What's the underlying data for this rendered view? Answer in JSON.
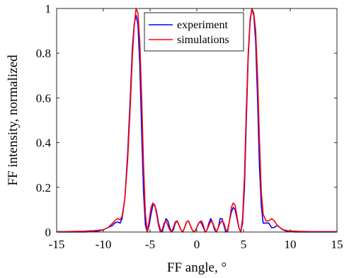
{
  "chart_data": {
    "type": "line",
    "title": "",
    "xlabel": "FF angle, °",
    "ylabel": "FF intensity, normalized",
    "xlim": [
      -15,
      15
    ],
    "ylim": [
      0,
      1
    ],
    "grid": false,
    "legend_position": "top-center",
    "x_ticks": [
      -15,
      -10,
      -5,
      0,
      5,
      10,
      15
    ],
    "y_ticks": [
      0,
      0.2,
      0.4,
      0.6,
      0.8,
      1
    ],
    "x_tick_labels": [
      "-15",
      "-10",
      "-5",
      "0",
      "5",
      "10",
      "15"
    ],
    "y_tick_labels": [
      "0",
      "0.2",
      "0.4",
      "0.6",
      "0.8",
      "1"
    ],
    "series": [
      {
        "name": "experiment",
        "color": "#0000ff",
        "x": [
          -15,
          -14,
          -13,
          -12,
          -11,
          -10.5,
          -10,
          -9.5,
          -9,
          -8.8,
          -8.5,
          -8.2,
          -8,
          -7.7,
          -7.4,
          -7.1,
          -6.9,
          -6.7,
          -6.5,
          -6.3,
          -6.1,
          -5.9,
          -5.7,
          -5.5,
          -5.3,
          -5.1,
          -4.9,
          -4.7,
          -4.5,
          -4.3,
          -4.1,
          -3.9,
          -3.7,
          -3.5,
          -3.3,
          -3.1,
          -2.9,
          -2.7,
          -2.5,
          -2.3,
          -2.1,
          -1.9,
          -1.7,
          -1.5,
          -1.3,
          -1.1,
          -0.9,
          -0.7,
          -0.5,
          -0.3,
          -0.1,
          0.1,
          0.3,
          0.5,
          0.7,
          0.9,
          1.1,
          1.3,
          1.5,
          1.7,
          1.9,
          2.1,
          2.3,
          2.5,
          2.7,
          2.9,
          3.1,
          3.3,
          3.5,
          3.7,
          3.9,
          4.1,
          4.3,
          4.5,
          4.7,
          4.9,
          5.1,
          5.3,
          5.5,
          5.7,
          5.9,
          6.1,
          6.3,
          6.5,
          6.7,
          6.9,
          7.1,
          7.4,
          7.7,
          8.0,
          8.3,
          8.6,
          8.9,
          9.2,
          9.5,
          9.8,
          10.5,
          11,
          12,
          13,
          14,
          15
        ],
        "values": [
          0.0,
          0.0,
          0.0,
          0.0,
          0.002,
          0.005,
          0.01,
          0.02,
          0.03,
          0.04,
          0.045,
          0.04,
          0.06,
          0.15,
          0.35,
          0.62,
          0.82,
          0.93,
          0.97,
          0.93,
          0.75,
          0.45,
          0.18,
          0.03,
          0.0,
          0.03,
          0.08,
          0.12,
          0.12,
          0.09,
          0.04,
          0.01,
          0.0,
          0.03,
          0.06,
          0.05,
          0.02,
          0.0,
          0.01,
          0.04,
          0.05,
          0.03,
          0.01,
          0.0,
          0.02,
          0.045,
          0.05,
          0.03,
          0.01,
          0.0,
          0.01,
          0.03,
          0.045,
          0.04,
          0.02,
          0.0,
          0.01,
          0.04,
          0.06,
          0.04,
          0.01,
          0.0,
          0.02,
          0.06,
          0.06,
          0.03,
          0.0,
          0.01,
          0.05,
          0.09,
          0.11,
          0.1,
          0.06,
          0.02,
          0.0,
          0.04,
          0.2,
          0.5,
          0.78,
          0.94,
          1.0,
          0.97,
          0.85,
          0.6,
          0.3,
          0.12,
          0.04,
          0.04,
          0.04,
          0.02,
          0.02,
          0.03,
          0.02,
          0.01,
          0.005,
          0.002,
          0.0,
          0.0,
          0.0,
          0.0,
          0.0,
          0.0
        ]
      },
      {
        "name": "simulations",
        "color": "#ff0000",
        "x": [
          -15,
          -14,
          -13,
          -12,
          -11,
          -10.5,
          -10,
          -9.5,
          -9,
          -8.8,
          -8.5,
          -8.2,
          -8,
          -7.7,
          -7.4,
          -7.1,
          -6.9,
          -6.7,
          -6.5,
          -6.3,
          -6.1,
          -5.9,
          -5.7,
          -5.5,
          -5.3,
          -5.1,
          -4.9,
          -4.7,
          -4.5,
          -4.3,
          -4.1,
          -3.9,
          -3.7,
          -3.5,
          -3.3,
          -3.1,
          -2.9,
          -2.7,
          -2.5,
          -2.3,
          -2.1,
          -1.9,
          -1.7,
          -1.5,
          -1.3,
          -1.1,
          -0.9,
          -0.7,
          -0.5,
          -0.3,
          -0.1,
          0.1,
          0.3,
          0.5,
          0.7,
          0.9,
          1.1,
          1.3,
          1.5,
          1.7,
          1.9,
          2.1,
          2.3,
          2.5,
          2.7,
          2.9,
          3.1,
          3.3,
          3.5,
          3.7,
          3.9,
          4.1,
          4.3,
          4.5,
          4.7,
          4.9,
          5.1,
          5.3,
          5.5,
          5.7,
          5.9,
          6.1,
          6.3,
          6.5,
          6.7,
          6.9,
          7.1,
          7.4,
          7.7,
          8.0,
          8.3,
          8.6,
          8.9,
          9.2,
          9.5,
          9.8,
          10.5,
          11,
          12,
          13,
          14,
          15
        ],
        "values": [
          0.002,
          0.002,
          0.003,
          0.004,
          0.006,
          0.008,
          0.01,
          0.02,
          0.04,
          0.05,
          0.06,
          0.055,
          0.07,
          0.15,
          0.32,
          0.58,
          0.78,
          0.92,
          1.0,
          0.98,
          0.85,
          0.6,
          0.3,
          0.08,
          0.0,
          0.05,
          0.11,
          0.13,
          0.12,
          0.08,
          0.03,
          0.0,
          0.01,
          0.04,
          0.05,
          0.03,
          0.01,
          0.0,
          0.02,
          0.045,
          0.05,
          0.03,
          0.01,
          0.0,
          0.02,
          0.045,
          0.05,
          0.03,
          0.01,
          0.0,
          0.01,
          0.03,
          0.045,
          0.05,
          0.03,
          0.0,
          0.01,
          0.03,
          0.05,
          0.04,
          0.02,
          0.0,
          0.02,
          0.04,
          0.05,
          0.04,
          0.01,
          0.0,
          0.05,
          0.11,
          0.13,
          0.12,
          0.07,
          0.02,
          0.0,
          0.06,
          0.25,
          0.55,
          0.8,
          0.95,
          1.0,
          0.98,
          0.9,
          0.7,
          0.42,
          0.18,
          0.08,
          0.05,
          0.05,
          0.06,
          0.05,
          0.03,
          0.02,
          0.01,
          0.008,
          0.005,
          0.004,
          0.003,
          0.002,
          0.002,
          0.002,
          0.002
        ]
      }
    ]
  }
}
